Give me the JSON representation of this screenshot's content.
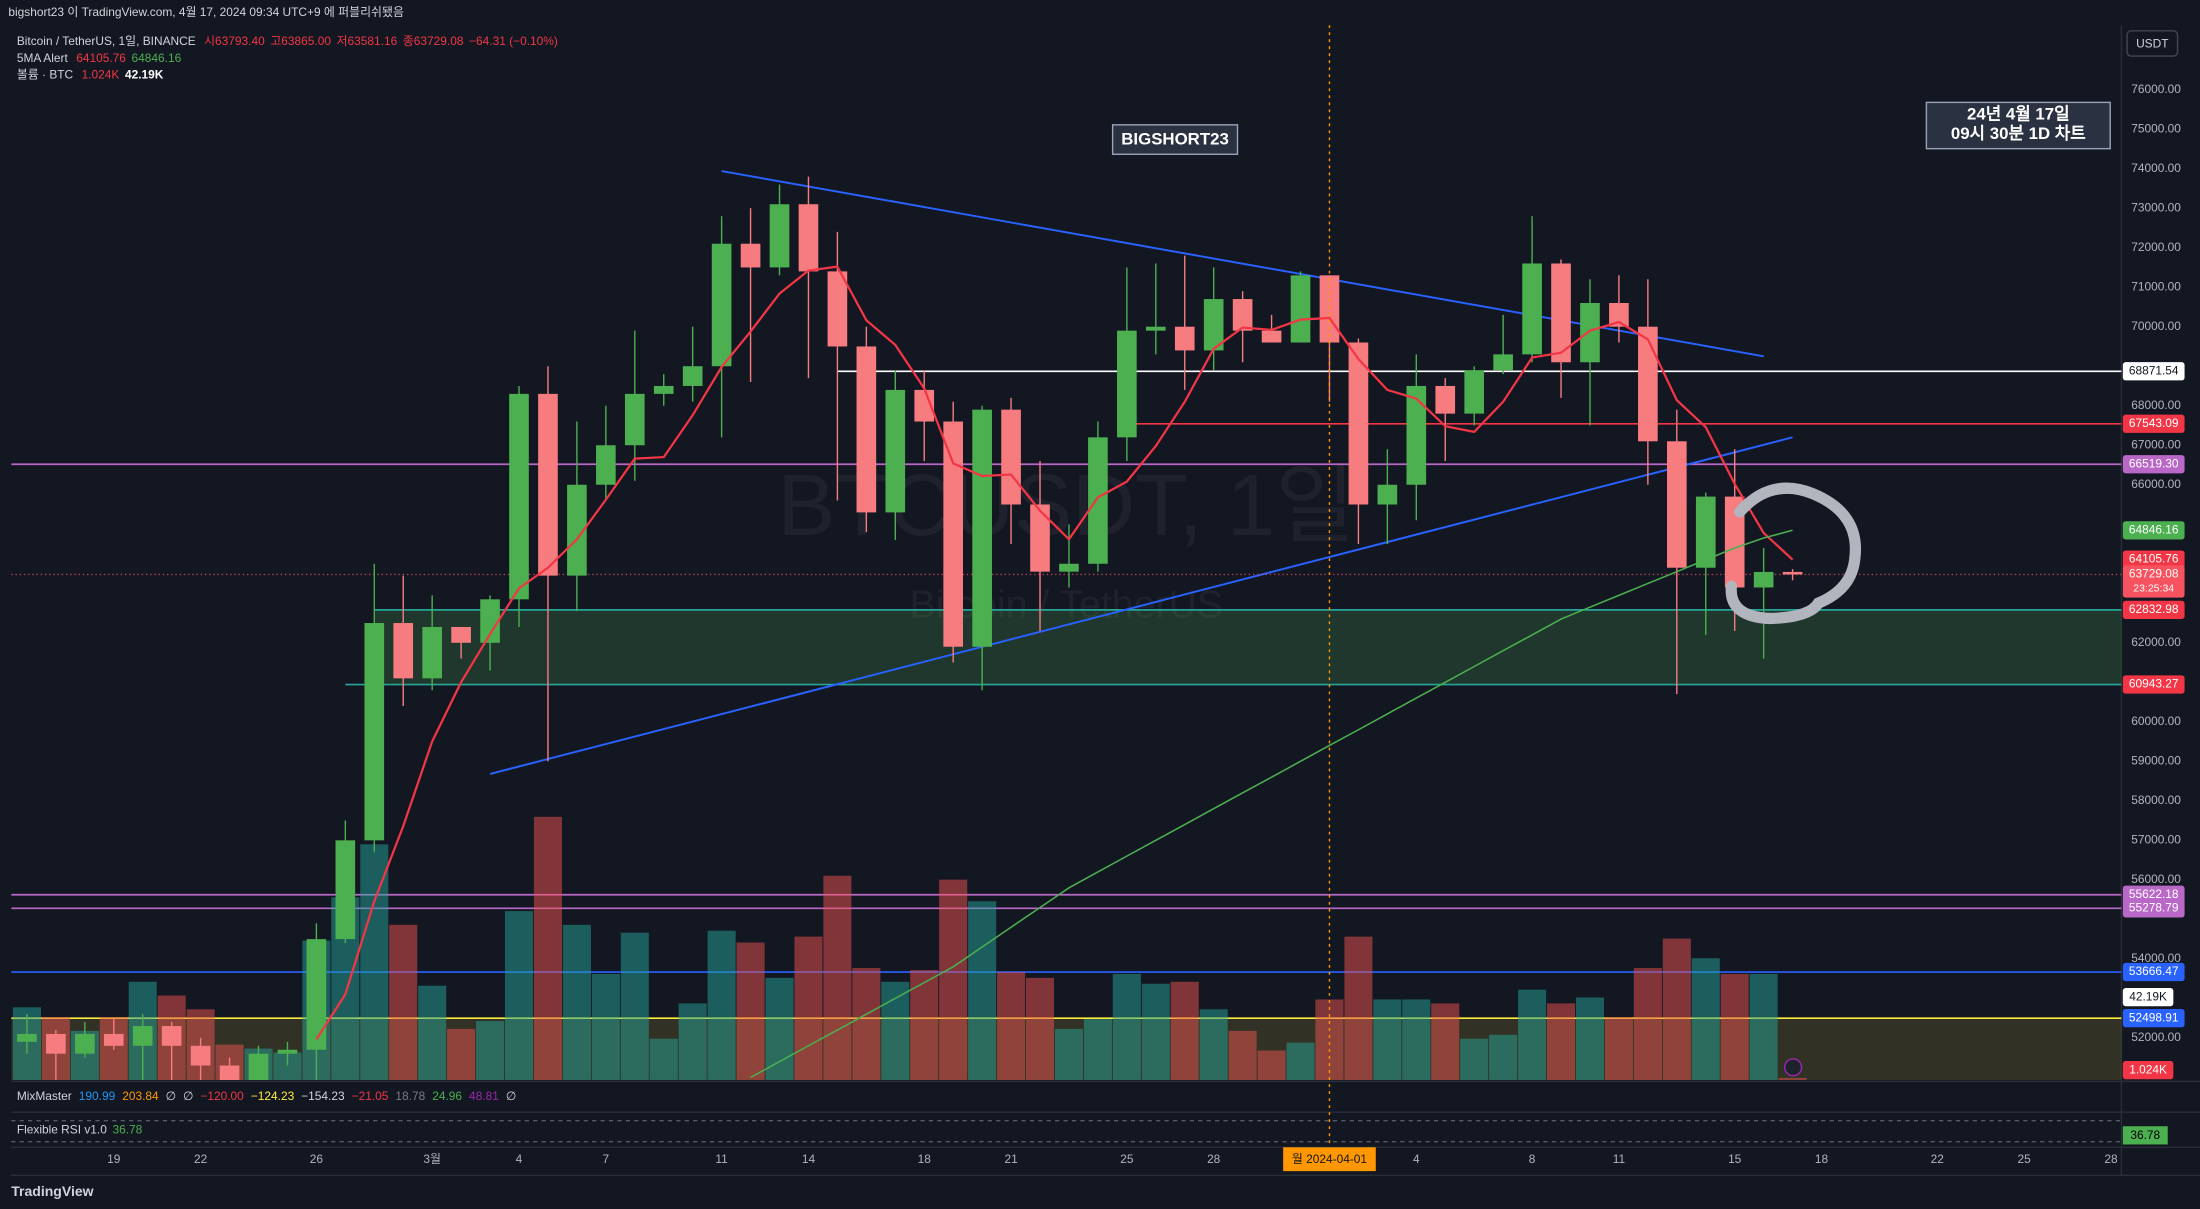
{
  "header": {
    "published": "bigshort23 이 TradingView.com, 4월 17, 2024 09:34 UTC+9 에 퍼블리쉬됐음",
    "currency": "USDT",
    "brand": "TradingView"
  },
  "legend": {
    "symbol": "Bitcoin / TetherUS, 1일, BINANCE",
    "open": "시63793.40",
    "high": "고63865.00",
    "low": "저63581.16",
    "close": "종63729.08",
    "change": "−64.31 (−0.10%)",
    "ma_name": "5MA Alert",
    "ma_values": [
      "64105.76",
      "64846.16"
    ],
    "volume_name": "볼륨 · BTC",
    "volume_values": [
      "1.024K",
      "42.19K"
    ]
  },
  "annotations": {
    "author_tag": "BIGSHORT23",
    "date_note": [
      "24년 4월 17일",
      "09시 30분 1D 차트"
    ]
  },
  "watermark": {
    "symbol": "BTCUSDT, 1일",
    "name": "Bitcoin / TetherUS"
  },
  "chart_data": {
    "type": "candlestick",
    "x": [
      "2024-02-16",
      "2024-02-17",
      "2024-02-18",
      "2024-02-19",
      "2024-02-20",
      "2024-02-21",
      "2024-02-22",
      "2024-02-23",
      "2024-02-24",
      "2024-02-25",
      "2024-02-26",
      "2024-02-27",
      "2024-02-28",
      "2024-02-29",
      "2024-03-01",
      "2024-03-02",
      "2024-03-03",
      "2024-03-04",
      "2024-03-05",
      "2024-03-06",
      "2024-03-07",
      "2024-03-08",
      "2024-03-09",
      "2024-03-10",
      "2024-03-11",
      "2024-03-12",
      "2024-03-13",
      "2024-03-14",
      "2024-03-15",
      "2024-03-16",
      "2024-03-17",
      "2024-03-18",
      "2024-03-19",
      "2024-03-20",
      "2024-03-21",
      "2024-03-22",
      "2024-03-23",
      "2024-03-24",
      "2024-03-25",
      "2024-03-26",
      "2024-03-27",
      "2024-03-28",
      "2024-03-29",
      "2024-03-30",
      "2024-03-31",
      "2024-04-01",
      "2024-04-02",
      "2024-04-03",
      "2024-04-04",
      "2024-04-05",
      "2024-04-06",
      "2024-04-07",
      "2024-04-08",
      "2024-04-09",
      "2024-04-10",
      "2024-04-11",
      "2024-04-12",
      "2024-04-13",
      "2024-04-14",
      "2024-04-15",
      "2024-04-16",
      "2024-04-17"
    ],
    "open": [
      51900,
      52100,
      51600,
      52100,
      51800,
      52300,
      51800,
      51300,
      50700,
      51600,
      51700,
      54500,
      57000,
      62500,
      61100,
      62400,
      62000,
      63100,
      68300,
      63700,
      66000,
      67000,
      68300,
      68500,
      69000,
      72100,
      71500,
      73100,
      71400,
      69500,
      65300,
      68400,
      67600,
      61900,
      67900,
      65500,
      63800,
      64000,
      67200,
      69900,
      70000,
      69400,
      70700,
      69900,
      69600,
      71300,
      69600,
      65500,
      66000,
      68500,
      67800,
      68900,
      69300,
      71600,
      69100,
      70600,
      70000,
      67100,
      63900,
      65700,
      63400,
      63793.4
    ],
    "high": [
      52600,
      52200,
      52400,
      52500,
      52600,
      52400,
      52000,
      51500,
      51800,
      51900,
      54900,
      57500,
      64000,
      63700,
      63200,
      62400,
      63200,
      68500,
      69000,
      67600,
      68000,
      69900,
      68800,
      70000,
      72800,
      73000,
      73600,
      73800,
      72400,
      70000,
      68900,
      68900,
      68100,
      68000,
      68200,
      66600,
      65000,
      67600,
      71500,
      71600,
      71800,
      71500,
      70900,
      70300,
      71400,
      71300,
      69700,
      66900,
      69300,
      68700,
      69000,
      70300,
      72800,
      71700,
      71200,
      71300,
      71200,
      67900,
      65800,
      66900,
      64400,
      63865
    ],
    "low": [
      51600,
      50900,
      51500,
      51700,
      50700,
      50900,
      50800,
      50500,
      50600,
      51300,
      50900,
      54400,
      56700,
      60400,
      60800,
      61600,
      61300,
      62400,
      59000,
      62800,
      65600,
      66100,
      68000,
      68100,
      67200,
      68600,
      71300,
      68700,
      65600,
      64800,
      64600,
      66600,
      61500,
      60800,
      64500,
      62300,
      63400,
      63800,
      66600,
      69300,
      68400,
      68900,
      69100,
      69600,
      69600,
      68100,
      64500,
      64500,
      65100,
      66600,
      67500,
      68800,
      69100,
      68200,
      67500,
      69600,
      66000,
      60700,
      62200,
      62300,
      61600,
      63581.16
    ],
    "close": [
      52100,
      51600,
      52100,
      51800,
      52300,
      51800,
      51300,
      50700,
      51600,
      51700,
      54500,
      57000,
      62500,
      61100,
      62400,
      62000,
      63100,
      68300,
      63700,
      66000,
      67000,
      68300,
      68500,
      69000,
      72100,
      71500,
      73100,
      71400,
      69500,
      65300,
      68400,
      67600,
      61900,
      67900,
      65500,
      63800,
      64000,
      67200,
      69900,
      70000,
      69400,
      70700,
      69900,
      69600,
      71300,
      69600,
      65500,
      66000,
      68500,
      67800,
      68900,
      69300,
      71600,
      69100,
      70600,
      70000,
      67100,
      63900,
      65700,
      63400,
      63793.4,
      63729.08
    ],
    "up_color": "#4caf50",
    "down_color": "#f77c80",
    "volume": [
      37,
      32,
      25,
      32,
      50,
      43,
      36,
      18,
      16,
      14,
      71,
      93,
      120,
      79,
      48,
      26,
      30,
      86,
      134,
      79,
      54,
      75,
      21,
      39,
      76,
      70,
      52,
      73,
      104,
      57,
      50,
      56,
      102,
      91,
      55,
      52,
      26,
      31,
      54,
      49,
      50,
      36,
      25,
      15,
      19,
      41,
      73,
      41,
      41,
      39,
      21,
      23,
      46,
      39,
      42,
      32,
      57,
      72,
      62,
      54,
      54,
      1.024
    ],
    "volume_label": "1.024K",
    "volume_ma": 42.19,
    "volume_ma_label": "42.19K",
    "volume_up_color": "rgba(38,166,154,0.5)",
    "volume_down_color": "rgba(239,83,80,0.5)",
    "sma_short": {
      "color": "#f23645",
      "values": [
        null,
        null,
        null,
        null,
        null,
        null,
        null,
        null,
        null,
        null,
        51960,
        53100,
        55460,
        57360,
        59500,
        61000,
        62220,
        63380,
        63900,
        64620,
        65620,
        66660,
        66700,
        67760,
        68980,
        69880,
        70840,
        71420,
        71520,
        70160,
        69540,
        68440,
        66540,
        66220,
        66260,
        65340,
        64620,
        65680,
        66080,
        66980,
        68100,
        69440,
        69980,
        69920,
        70180,
        70220,
        69180,
        68400,
        68180,
        67480,
        67340,
        68100,
        69220,
        69340,
        69900,
        70120,
        69680,
        68140,
        67460,
        66020,
        64778.68,
        64105.76
      ]
    },
    "sma_long": {
      "color": "#4caf50",
      "values": [
        null,
        null,
        null,
        null,
        null,
        null,
        null,
        null,
        null,
        null,
        null,
        null,
        null,
        null,
        null,
        null,
        null,
        null,
        null,
        null,
        null,
        null,
        null,
        null,
        null,
        51000,
        51400,
        51800,
        52200,
        52600,
        53000,
        53400,
        53800,
        54300,
        54800,
        55300,
        55800,
        56200,
        56600,
        57000,
        57400,
        57800,
        58200,
        58600,
        59000,
        59400,
        59800,
        60200,
        60600,
        61000,
        61400,
        61800,
        62200,
        62600,
        62900,
        63200,
        63500,
        63800,
        64100,
        64400,
        64650,
        64846.16
      ]
    },
    "ylim": [
      50935,
      77630
    ],
    "yticks": [
      {
        "value": 76000,
        "label": "76000.00"
      },
      {
        "value": 75000,
        "label": "75000.00"
      },
      {
        "value": 74000,
        "label": "74000.00"
      },
      {
        "value": 73000,
        "label": "73000.00"
      },
      {
        "value": 72000,
        "label": "72000.00"
      },
      {
        "value": 71000,
        "label": "71000.00"
      },
      {
        "value": 70000,
        "label": "70000.00"
      },
      {
        "value": 68000,
        "label": "68000.00"
      },
      {
        "value": 67000,
        "label": "67000.00"
      },
      {
        "value": 66000,
        "label": "66000.00"
      },
      {
        "value": 62000,
        "label": "62000.00"
      },
      {
        "value": 60000,
        "label": "60000.00"
      },
      {
        "value": 59000,
        "label": "59000.00"
      },
      {
        "value": 58000,
        "label": "58000.00"
      },
      {
        "value": 57000,
        "label": "57000.00"
      },
      {
        "value": 56000,
        "label": "56000.00"
      },
      {
        "value": 54000,
        "label": "54000.00"
      },
      {
        "value": 52000,
        "label": "52000.00"
      }
    ],
    "xticks": [
      {
        "value": "2024-02-19",
        "label": "19"
      },
      {
        "value": "2024-02-22",
        "label": "22"
      },
      {
        "value": "2024-02-26",
        "label": "26"
      },
      {
        "value": "2024-03-01",
        "label": "3월"
      },
      {
        "value": "2024-03-04",
        "label": "4"
      },
      {
        "value": "2024-03-07",
        "label": "7"
      },
      {
        "value": "2024-03-11",
        "label": "11"
      },
      {
        "value": "2024-03-14",
        "label": "14"
      },
      {
        "value": "2024-03-18",
        "label": "18"
      },
      {
        "value": "2024-03-21",
        "label": "21"
      },
      {
        "value": "2024-03-25",
        "label": "25"
      },
      {
        "value": "2024-03-28",
        "label": "28"
      },
      {
        "value": "2024-04-04",
        "label": "4"
      },
      {
        "value": "2024-04-08",
        "label": "8"
      },
      {
        "value": "2024-04-11",
        "label": "11"
      },
      {
        "value": "2024-04-15",
        "label": "15"
      },
      {
        "value": "2024-04-18",
        "label": "18"
      },
      {
        "value": "2024-04-22",
        "label": "22"
      },
      {
        "value": "2024-04-25",
        "label": "25"
      },
      {
        "value": "2024-04-28",
        "label": "28"
      }
    ],
    "levels": [
      {
        "value": 68871.54,
        "label": "68871.54",
        "color": "#ffffff",
        "text_color": "#131722",
        "line": "solid",
        "line_color": "#ffffff",
        "start": "2024-03-15"
      },
      {
        "value": 67543.09,
        "label": "67543.09",
        "color": "#f23645",
        "text_color": "#ffffff",
        "line": "solid",
        "line_color": "#f23645",
        "start": "2024-03-25"
      },
      {
        "value": 66519.3,
        "label": "66519.30",
        "color": "#ba68c8",
        "text_color": "#ffffff",
        "line": "solid",
        "line_color": "#ba68c8"
      },
      {
        "value": 64846.16,
        "label": "64846.16",
        "color": "#4caf50",
        "text_color": "#ffffff",
        "line": "none"
      },
      {
        "value": 64105.76,
        "label": "64105.76",
        "color": "#f23645",
        "text_color": "#ffffff",
        "line": "none"
      },
      {
        "value": 62832.98,
        "label": "62832.98",
        "color": "#f23645",
        "text_color": "#ffffff",
        "line": "solid",
        "line_color": "#26a69a",
        "start": "2024-02-28"
      },
      {
        "value": 60943.27,
        "label": "60943.27",
        "color": "#f23645",
        "text_color": "#ffffff",
        "line": "solid",
        "line_color": "#26a69a",
        "start": "2024-02-27"
      },
      {
        "value": 55622.18,
        "label": "55622.18",
        "color": "#ba68c8",
        "text_color": "#ffffff",
        "line": "solid",
        "line_color": "#ba68c8"
      },
      {
        "value": 55278.79,
        "label": "55278.79",
        "color": "#ba68c8",
        "text_color": "#ffffff",
        "line": "solid",
        "line_color": "#ba68c8"
      },
      {
        "value": 53666.47,
        "label": "53666.47",
        "color": "#2962ff",
        "text_color": "#ffffff",
        "line": "solid",
        "line_color": "#2962ff"
      },
      {
        "value": 52498.91,
        "label": "52498.91",
        "color": "#2962ff",
        "text_color": "#ffffff",
        "line": "solid",
        "line_color": "#ffeb3b"
      }
    ],
    "zones": [
      {
        "top": 62832.98,
        "bottom": 60943.27,
        "start": "2024-02-28",
        "color": "rgba(76,175,80,0.22)"
      },
      {
        "top": 52498.91,
        "color": "rgba(255,235,59,0.13)"
      }
    ],
    "trendlines": [
      {
        "x": [
          "2024-03-11",
          "2024-04-16"
        ],
        "y": [
          73940,
          69250
        ],
        "color": "#2962ff"
      },
      {
        "x": [
          "2024-03-03",
          "2024-04-17"
        ],
        "y": [
          58680,
          67200
        ],
        "color": "#2962ff"
      }
    ],
    "crosshair": {
      "x": "2024-04-01",
      "label": "월 2024-04-01",
      "color": "#ff9800"
    },
    "last_price": {
      "value": 63729.08,
      "label": "63729.08",
      "countdown": "23:25:34",
      "color": "#f7525f"
    }
  },
  "indicators": {
    "mixmaster": {
      "name": "MixMaster",
      "values": [
        "190.99",
        "203.84",
        "∅",
        "∅",
        "−120.00",
        "−124.23",
        "−154.23",
        "−21.05",
        "18.78",
        "24.96",
        "48.81",
        "∅"
      ],
      "colors": [
        "#2196f3",
        "#ff9800",
        "#d1d4dc",
        "#d1d4dc",
        "#f23645",
        "#ffeb3b",
        "#d1d4dc",
        "#f23645",
        "#787b86",
        "#4caf50",
        "#9c27b0",
        "#d1d4dc"
      ]
    },
    "rsi": {
      "name": "Flexible RSI v1.0",
      "value": 36.78
    }
  }
}
